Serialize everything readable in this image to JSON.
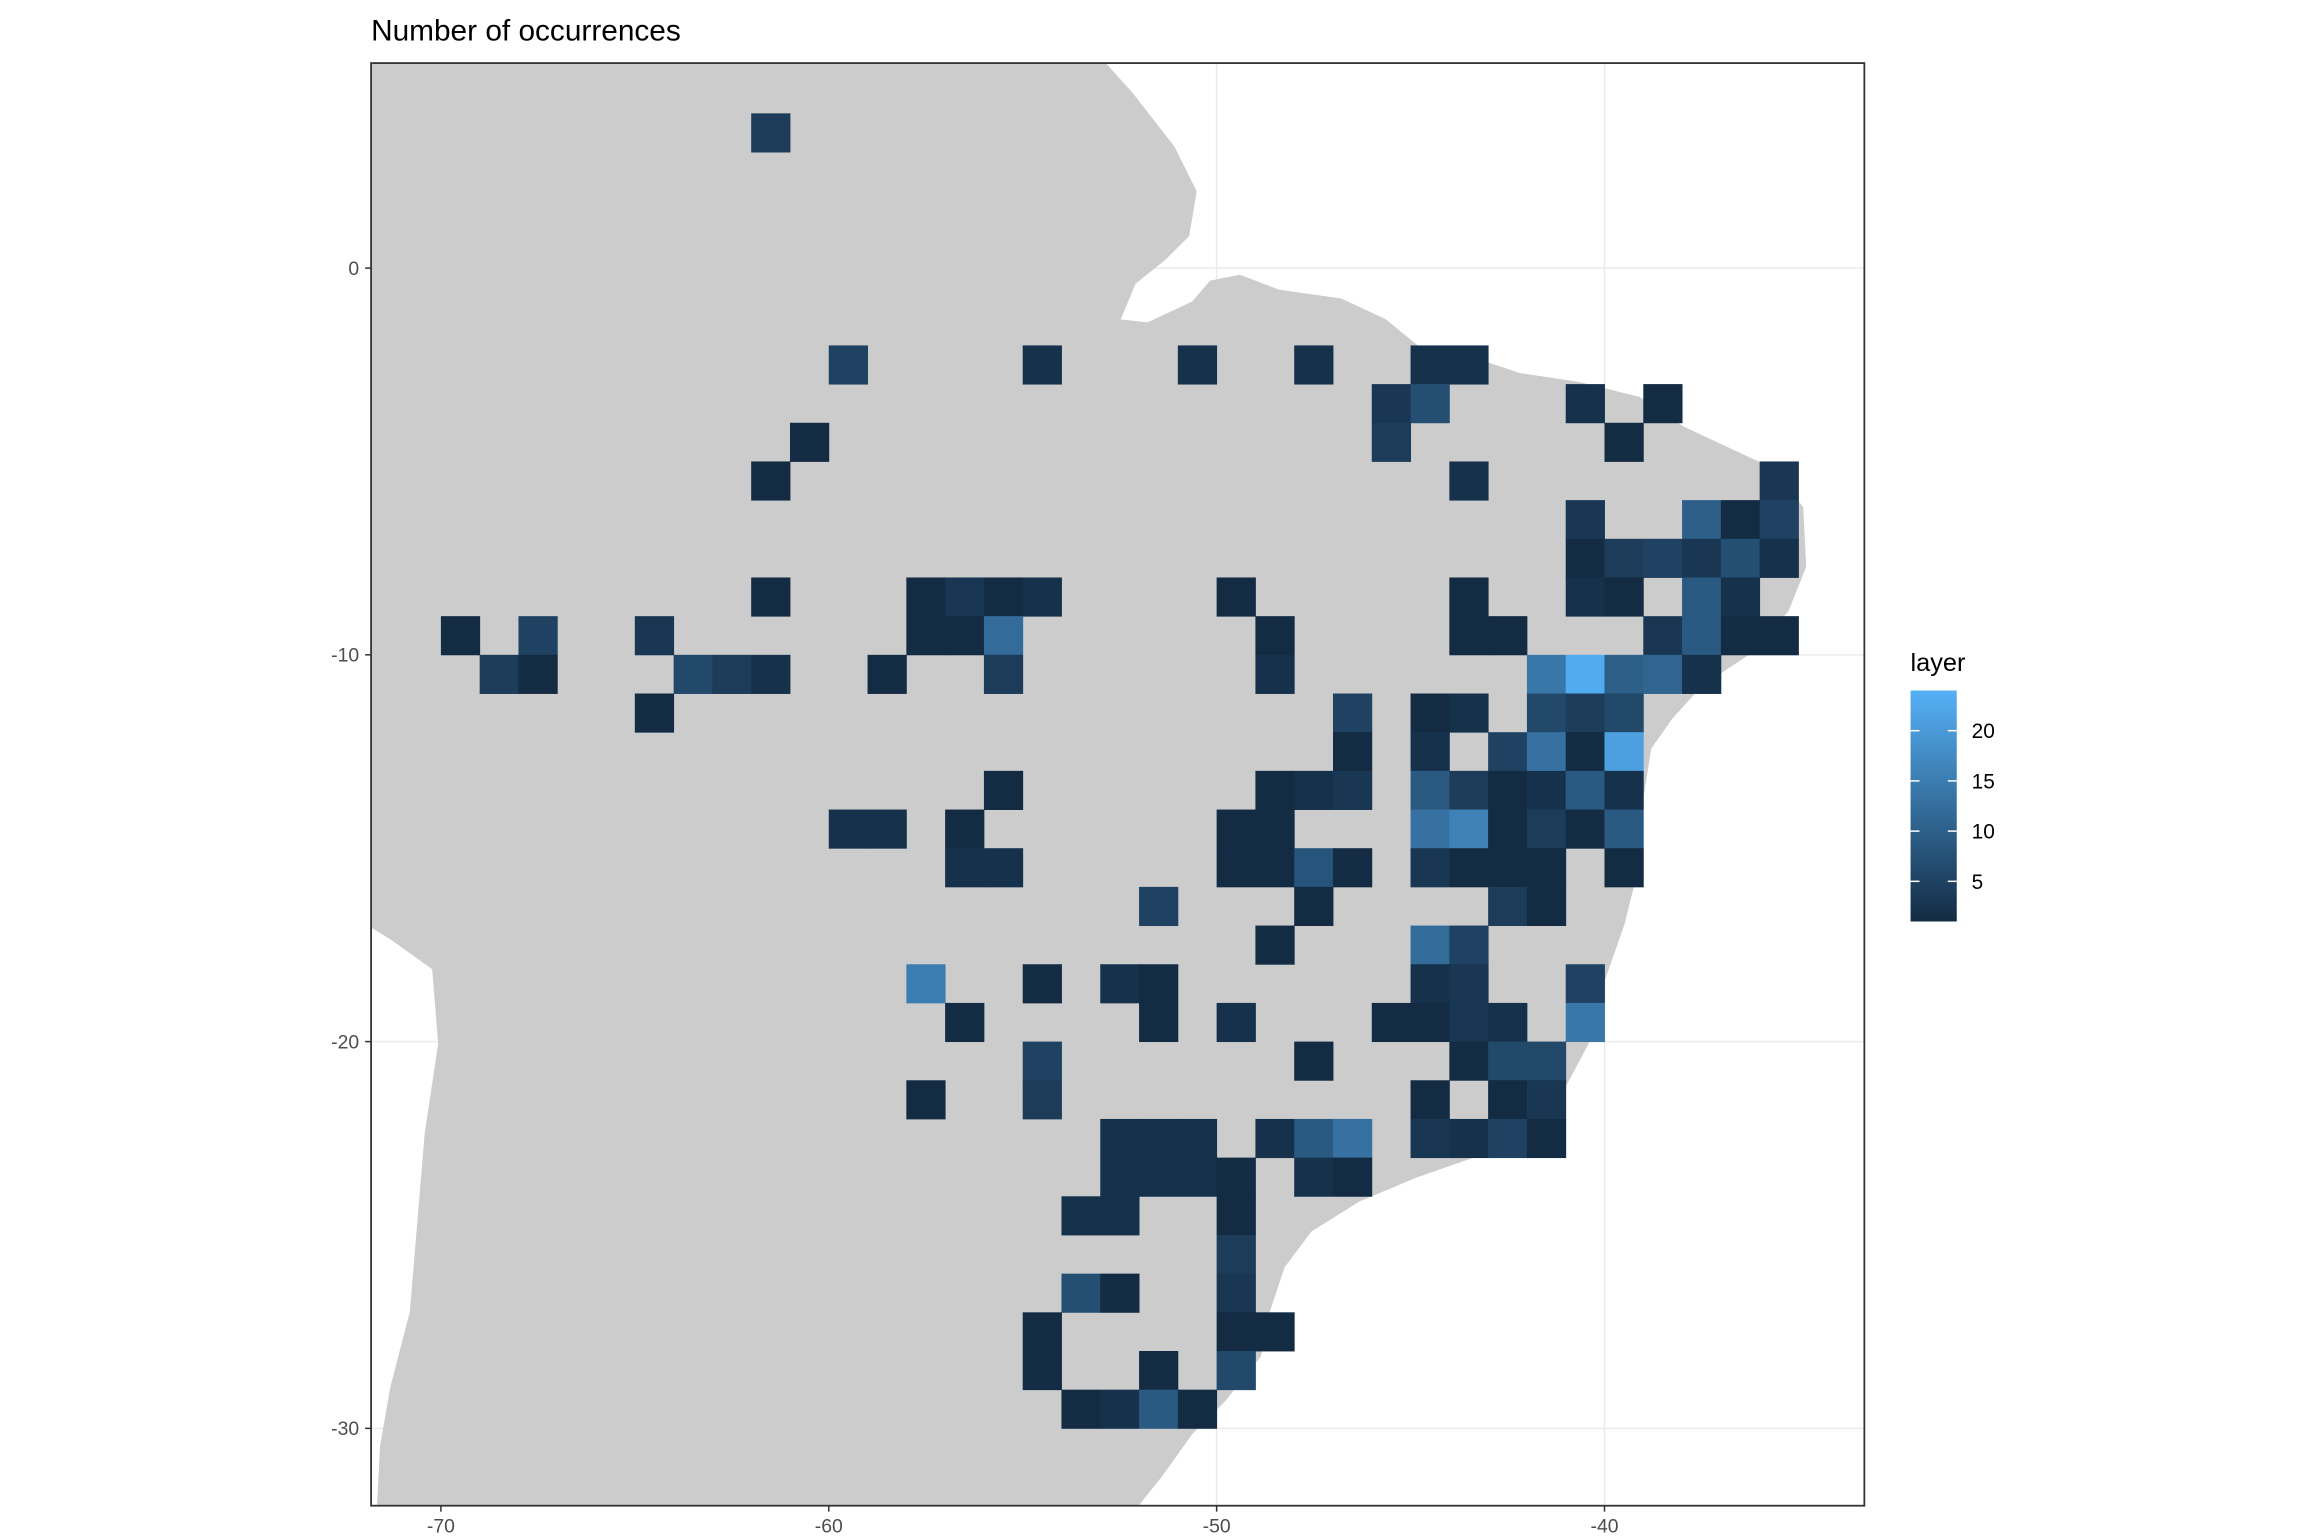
{
  "chart_data": {
    "type": "raster",
    "title": "Number of occurrences",
    "xlim": [
      -71.8,
      -33.3
    ],
    "ylim": [
      -32,
      5.3
    ],
    "xticks": [
      -70,
      -60,
      -50,
      -40
    ],
    "yticks": [
      0,
      -10,
      -20,
      -30
    ],
    "grid": true,
    "legend_position": "right",
    "color_scale": {
      "title": "layer",
      "low": "#132B43",
      "high": "#56B1F7",
      "limits": [
        1,
        24
      ],
      "ticks": [
        5,
        10,
        15,
        20
      ]
    },
    "x": [
      -61.5,
      -59.5,
      -54.5,
      -50.5,
      -47.5,
      -44.5,
      -43.5,
      -45.5,
      -44.5,
      -40.5,
      -38.5,
      -60.5,
      -45.5,
      -39.5,
      -61.5,
      -43.5,
      -35.5,
      -40.5,
      -37.5,
      -36.5,
      -35.5,
      -40.5,
      -39.5,
      -38.5,
      -37.5,
      -36.5,
      -35.5,
      -61.5,
      -57.5,
      -56.5,
      -55.5,
      -54.5,
      -49.5,
      -43.5,
      -40.5,
      -39.5,
      -37.5,
      -36.5,
      -69.5,
      -67.5,
      -64.5,
      -57.5,
      -56.5,
      -55.5,
      -48.5,
      -43.5,
      -42.5,
      -38.5,
      -37.5,
      -36.5,
      -35.5,
      -68.5,
      -67.5,
      -63.5,
      -62.5,
      -61.5,
      -58.5,
      -55.5,
      -48.5,
      -41.5,
      -40.5,
      -39.5,
      -38.5,
      -37.5,
      -64.5,
      -46.5,
      -44.5,
      -43.5,
      -41.5,
      -40.5,
      -39.5,
      -46.5,
      -44.5,
      -42.5,
      -41.5,
      -40.5,
      -39.5,
      -55.5,
      -48.5,
      -47.5,
      -46.5,
      -44.5,
      -43.5,
      -42.5,
      -41.5,
      -40.5,
      -39.5,
      -59.5,
      -58.5,
      -56.5,
      -49.5,
      -48.5,
      -44.5,
      -43.5,
      -42.5,
      -41.5,
      -40.5,
      -39.5,
      -56.5,
      -55.5,
      -49.5,
      -48.5,
      -47.5,
      -46.5,
      -44.5,
      -43.5,
      -42.5,
      -41.5,
      -39.5,
      -51.5,
      -47.5,
      -42.5,
      -41.5,
      -48.5,
      -44.5,
      -43.5,
      -57.5,
      -54.5,
      -52.5,
      -51.5,
      -44.5,
      -43.5,
      -40.5,
      -56.5,
      -51.5,
      -49.5,
      -45.5,
      -44.5,
      -43.5,
      -42.5,
      -40.5,
      -54.5,
      -47.5,
      -43.5,
      -42.5,
      -41.5,
      -57.5,
      -54.5,
      -44.5,
      -42.5,
      -41.5,
      -52.5,
      -51.5,
      -50.5,
      -48.5,
      -47.5,
      -46.5,
      -44.5,
      -43.5,
      -42.5,
      -41.5,
      -52.5,
      -51.5,
      -50.5,
      -49.5,
      -47.5,
      -46.5,
      -53.5,
      -52.5,
      -49.5,
      -49.5,
      -53.5,
      -52.5,
      -49.5,
      -54.5,
      -49.5,
      -48.5,
      -54.5,
      -51.5,
      -49.5,
      -53.5,
      -52.5,
      -51.5,
      -50.5
    ],
    "y": [
      3.5,
      -2.5,
      -2.5,
      -2.5,
      -2.5,
      -2.5,
      -2.5,
      -3.5,
      -3.5,
      -3.5,
      -3.5,
      -4.5,
      -4.5,
      -4.5,
      -5.5,
      -5.5,
      -5.5,
      -6.5,
      -6.5,
      -6.5,
      -6.5,
      -7.5,
      -7.5,
      -7.5,
      -7.5,
      -7.5,
      -7.5,
      -8.5,
      -8.5,
      -8.5,
      -8.5,
      -8.5,
      -8.5,
      -8.5,
      -8.5,
      -8.5,
      -8.5,
      -8.5,
      -9.5,
      -9.5,
      -9.5,
      -9.5,
      -9.5,
      -9.5,
      -9.5,
      -9.5,
      -9.5,
      -9.5,
      -9.5,
      -9.5,
      -9.5,
      -10.5,
      -10.5,
      -10.5,
      -10.5,
      -10.5,
      -10.5,
      -10.5,
      -10.5,
      -10.5,
      -10.5,
      -10.5,
      -10.5,
      -10.5,
      -11.5,
      -11.5,
      -11.5,
      -11.5,
      -11.5,
      -11.5,
      -11.5,
      -12.5,
      -12.5,
      -12.5,
      -12.5,
      -12.5,
      -12.5,
      -13.5,
      -13.5,
      -13.5,
      -13.5,
      -13.5,
      -13.5,
      -13.5,
      -13.5,
      -13.5,
      -13.5,
      -14.5,
      -14.5,
      -14.5,
      -14.5,
      -14.5,
      -14.5,
      -14.5,
      -14.5,
      -14.5,
      -14.5,
      -14.5,
      -15.5,
      -15.5,
      -15.5,
      -15.5,
      -15.5,
      -15.5,
      -15.5,
      -15.5,
      -15.5,
      -15.5,
      -15.5,
      -16.5,
      -16.5,
      -16.5,
      -16.5,
      -17.5,
      -17.5,
      -17.5,
      -18.5,
      -18.5,
      -18.5,
      -18.5,
      -18.5,
      -18.5,
      -18.5,
      -19.5,
      -19.5,
      -19.5,
      -19.5,
      -19.5,
      -19.5,
      -19.5,
      -19.5,
      -20.5,
      -20.5,
      -20.5,
      -20.5,
      -20.5,
      -21.5,
      -21.5,
      -21.5,
      -21.5,
      -21.5,
      -22.5,
      -22.5,
      -22.5,
      -22.5,
      -22.5,
      -22.5,
      -22.5,
      -22.5,
      -22.5,
      -22.5,
      -23.5,
      -23.5,
      -23.5,
      -23.5,
      -23.5,
      -23.5,
      -24.5,
      -24.5,
      -24.5,
      -25.5,
      -26.5,
      -26.5,
      -26.5,
      -27.5,
      -27.5,
      -27.5,
      -28.5,
      -28.5,
      -28.5,
      -29.5,
      -29.5,
      -29.5,
      -29.5
    ],
    "values": [
      4,
      5,
      2,
      2,
      2,
      2,
      2,
      3,
      7,
      2,
      1,
      1,
      4,
      1,
      1,
      2,
      3,
      3,
      10,
      1,
      5,
      1,
      4,
      5,
      3,
      7,
      2,
      1,
      1,
      3,
      1,
      2,
      1,
      1,
      2,
      1,
      9,
      2,
      1,
      5,
      3,
      1,
      1,
      12,
      1,
      1,
      1,
      3,
      9,
      1,
      1,
      4,
      1,
      6,
      4,
      2,
      1,
      4,
      2,
      14,
      23,
      10,
      11,
      2,
      1,
      5,
      1,
      2,
      6,
      4,
      6,
      1,
      2,
      5,
      13,
      1,
      21,
      1,
      1,
      2,
      3,
      9,
      4,
      1,
      2,
      9,
      2,
      2,
      2,
      1,
      1,
      1,
      13,
      16,
      1,
      4,
      1,
      9,
      2,
      2,
      1,
      1,
      8,
      1,
      3,
      1,
      1,
      1,
      1,
      5,
      1,
      4,
      1,
      1,
      12,
      5,
      15,
      1,
      2,
      1,
      2,
      3,
      5,
      1,
      1,
      2,
      1,
      1,
      3,
      2,
      14,
      5,
      1,
      1,
      6,
      6,
      1,
      4,
      1,
      1,
      3,
      2,
      2,
      2,
      2,
      9,
      13,
      3,
      2,
      5,
      1,
      2,
      2,
      2,
      1,
      2,
      1,
      2,
      2,
      1,
      4,
      7,
      1,
      3,
      1,
      1,
      1,
      1,
      1,
      6,
      1,
      2,
      9,
      1
    ]
  }
}
